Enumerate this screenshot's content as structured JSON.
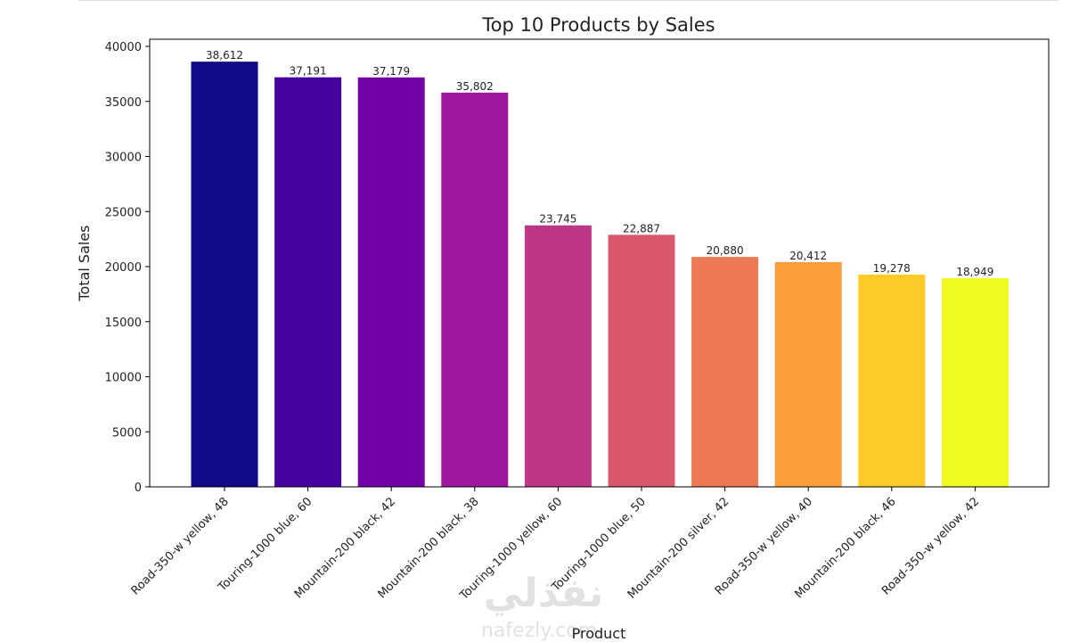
{
  "chart_data": {
    "type": "bar",
    "title": "Top 10 Products by Sales",
    "xlabel": "Product",
    "ylabel": "Total Sales",
    "ylim": [
      0,
      40500
    ],
    "yticks": [
      0,
      5000,
      10000,
      15000,
      20000,
      25000,
      30000,
      35000,
      40000
    ],
    "grid": false,
    "categories": [
      "Road-350-w yellow, 48",
      "Touring-1000 blue, 60",
      "Mountain-200 black, 42",
      "Mountain-200 black, 38",
      "Touring-1000 yellow, 60",
      "Touring-1000 blue, 50",
      "Mountain-200 silver, 42",
      "Road-350-w yellow, 40",
      "Mountain-200 black, 46",
      "Road-350-w yellow, 42"
    ],
    "values": [
      38612,
      37191,
      37179,
      35802,
      23745,
      22887,
      20880,
      20412,
      19278,
      18949
    ],
    "data_labels": [
      "38,612",
      "37,191",
      "37,179",
      "35,802",
      "23,745",
      "22,887",
      "20,880",
      "20,412",
      "19,278",
      "18,949"
    ],
    "colors": [
      "#0f0a87",
      "#46039f",
      "#7201a8",
      "#9c179e",
      "#bd3786",
      "#d8576b",
      "#ed7953",
      "#fb9f3a",
      "#fdca26",
      "#f0f921"
    ]
  },
  "watermark": "nafezly.com"
}
